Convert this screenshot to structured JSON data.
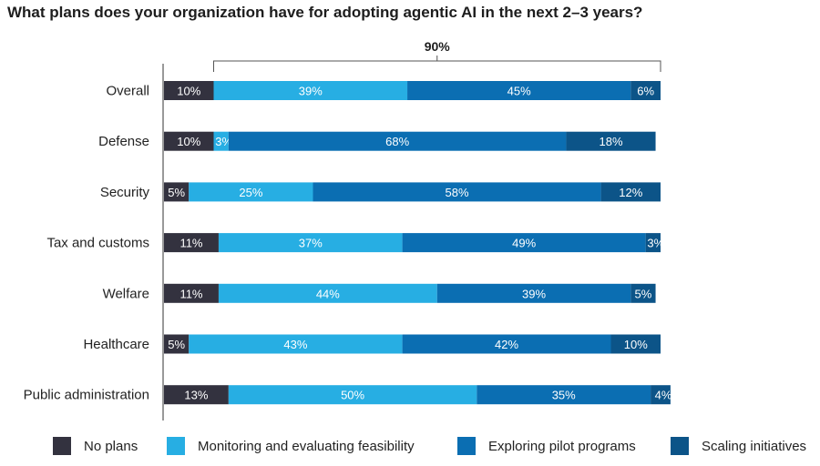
{
  "title": "What plans does your organization have for adopting agentic AI in the next 2–3 years?",
  "chart_data": {
    "type": "bar",
    "orientation": "horizontal",
    "stacked": true,
    "categories": [
      "Overall",
      "Defense",
      "Security",
      "Tax and customs",
      "Welfare",
      "Healthcare",
      "Public administration"
    ],
    "series": [
      {
        "name": "No plans",
        "color": "#33323f",
        "values": [
          10,
          10,
          5,
          11,
          11,
          5,
          13
        ]
      },
      {
        "name": "Monitoring and evaluating feasibility",
        "color": "#27aee3",
        "values": [
          39,
          3,
          25,
          37,
          44,
          43,
          50
        ]
      },
      {
        "name": "Exploring pilot programs",
        "color": "#0b6eb2",
        "values": [
          45,
          68,
          58,
          49,
          39,
          42,
          35
        ]
      },
      {
        "name": "Scaling initiatives",
        "color": "#0c5488",
        "values": [
          6,
          18,
          12,
          3,
          5,
          10,
          4
        ]
      }
    ],
    "xlim": [
      0,
      100
    ],
    "annotation": {
      "label": "90%",
      "category": "Overall",
      "from_series": 1,
      "to_series": 3
    }
  }
}
